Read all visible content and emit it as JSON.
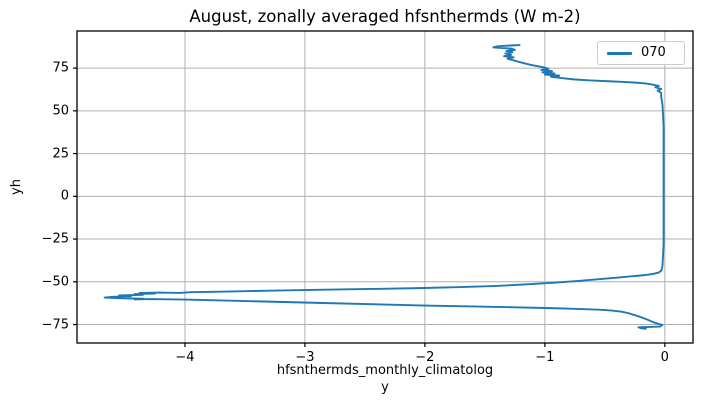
{
  "chart_data": {
    "type": "line",
    "title": "August, zonally averaged hfsnthermds (W m-2)",
    "xlabel_lines": [
      "hfsnthermds_monthly_climatolog",
      "y"
    ],
    "ylabel": "yh",
    "xlim": [
      -4.9,
      0.235
    ],
    "ylim": [
      -85.8,
      96.7
    ],
    "grid": true,
    "xticks": {
      "values": [
        -4,
        -3,
        -2,
        -1,
        0
      ],
      "labels": [
        "−4",
        "−3",
        "−2",
        "−1",
        "0"
      ]
    },
    "yticks": {
      "values": [
        75,
        50,
        25,
        0,
        -25,
        -50,
        -75
      ],
      "labels": [
        "75",
        "50",
        "25",
        "0",
        "−25",
        "−50",
        "−75"
      ]
    },
    "legend": {
      "position": "upper-right",
      "entries": [
        "070"
      ]
    },
    "colors": {
      "line": "#1f77b4",
      "grid": "#b0b0b0",
      "spine": "#000000",
      "text": "#000000",
      "legend_border": "#cccccc",
      "background": "#ffffff"
    },
    "series": [
      {
        "name": "070",
        "color": "#1f77b4",
        "points": [
          [
            -0.16,
            -77.5
          ],
          [
            -0.2,
            -77.1
          ],
          [
            -0.22,
            -76.6
          ],
          [
            -0.04,
            -76.2
          ],
          [
            -0.03,
            -75.7
          ],
          [
            -0.02,
            -75.2
          ],
          [
            -0.05,
            -74.7
          ],
          [
            -0.08,
            -74.0
          ],
          [
            -0.11,
            -73.2
          ],
          [
            -0.14,
            -72.3
          ],
          [
            -0.18,
            -71.2
          ],
          [
            -0.22,
            -70.2
          ],
          [
            -0.26,
            -69.3
          ],
          [
            -0.3,
            -68.4
          ],
          [
            -0.36,
            -67.5
          ],
          [
            -0.44,
            -66.8
          ],
          [
            -0.55,
            -66.3
          ],
          [
            -0.72,
            -65.9
          ],
          [
            -0.95,
            -65.4
          ],
          [
            -1.25,
            -64.9
          ],
          [
            -1.6,
            -64.4
          ],
          [
            -2.0,
            -63.9
          ],
          [
            -2.4,
            -63.2
          ],
          [
            -2.85,
            -62.4
          ],
          [
            -3.3,
            -61.6
          ],
          [
            -3.7,
            -60.9
          ],
          [
            -4.0,
            -60.4
          ],
          [
            -4.3,
            -60.1
          ],
          [
            -4.42,
            -60.3
          ],
          [
            -4.35,
            -59.9
          ],
          [
            -4.55,
            -59.6
          ],
          [
            -4.67,
            -59.2
          ],
          [
            -4.6,
            -58.8
          ],
          [
            -4.45,
            -58.4
          ],
          [
            -4.55,
            -58.0
          ],
          [
            -4.35,
            -57.6
          ],
          [
            -4.42,
            -57.2
          ],
          [
            -4.25,
            -56.9
          ],
          [
            -4.38,
            -56.6
          ],
          [
            -4.22,
            -56.3
          ],
          [
            -4.05,
            -56.5
          ],
          [
            -3.95,
            -56.1
          ],
          [
            -3.65,
            -55.7
          ],
          [
            -3.3,
            -55.2
          ],
          [
            -2.9,
            -54.7
          ],
          [
            -2.45,
            -54.2
          ],
          [
            -2.05,
            -53.7
          ],
          [
            -1.7,
            -53.1
          ],
          [
            -1.4,
            -52.4
          ],
          [
            -1.15,
            -51.5
          ],
          [
            -0.92,
            -50.5
          ],
          [
            -0.72,
            -49.5
          ],
          [
            -0.55,
            -48.5
          ],
          [
            -0.4,
            -47.6
          ],
          [
            -0.28,
            -46.8
          ],
          [
            -0.17,
            -46.1
          ],
          [
            -0.1,
            -45.4
          ],
          [
            -0.05,
            -44.6
          ],
          [
            -0.03,
            -43.5
          ],
          [
            -0.02,
            -41.0
          ],
          [
            -0.015,
            -35
          ],
          [
            -0.01,
            -28
          ],
          [
            -0.01,
            -20
          ],
          [
            -0.01,
            -10
          ],
          [
            -0.01,
            0
          ],
          [
            -0.01,
            10
          ],
          [
            -0.01,
            20
          ],
          [
            -0.01,
            30
          ],
          [
            -0.01,
            40
          ],
          [
            -0.015,
            48
          ],
          [
            -0.02,
            54
          ],
          [
            -0.03,
            58
          ],
          [
            -0.03,
            60.5
          ],
          [
            -0.06,
            61.8
          ],
          [
            -0.03,
            62.8
          ],
          [
            -0.08,
            63.8
          ],
          [
            -0.05,
            64.6
          ],
          [
            -0.1,
            65.3
          ],
          [
            -0.16,
            66.0
          ],
          [
            -0.24,
            66.5
          ],
          [
            -0.34,
            66.9
          ],
          [
            -0.47,
            67.3
          ],
          [
            -0.62,
            67.8
          ],
          [
            -0.76,
            68.4
          ],
          [
            -0.86,
            69.2
          ],
          [
            -0.95,
            70.0
          ],
          [
            -0.88,
            70.6
          ],
          [
            -1.0,
            71.2
          ],
          [
            -0.92,
            71.9
          ],
          [
            -1.02,
            72.5
          ],
          [
            -0.94,
            73.2
          ],
          [
            -1.03,
            73.9
          ],
          [
            -0.97,
            74.6
          ],
          [
            -1.0,
            75.3
          ],
          [
            -1.06,
            76.1
          ],
          [
            -1.12,
            76.9
          ],
          [
            -1.17,
            77.8
          ],
          [
            -1.22,
            78.7
          ],
          [
            -1.27,
            79.7
          ],
          [
            -1.31,
            80.5
          ],
          [
            -1.26,
            81.3
          ],
          [
            -1.34,
            82.0
          ],
          [
            -1.28,
            82.8
          ],
          [
            -1.33,
            83.6
          ],
          [
            -1.27,
            84.3
          ],
          [
            -1.32,
            85.0
          ],
          [
            -1.25,
            85.7
          ],
          [
            -1.28,
            86.4
          ],
          [
            -1.43,
            87.1
          ],
          [
            -1.4,
            87.7
          ],
          [
            -1.32,
            88.1
          ],
          [
            -1.21,
            88.5
          ]
        ]
      }
    ]
  }
}
